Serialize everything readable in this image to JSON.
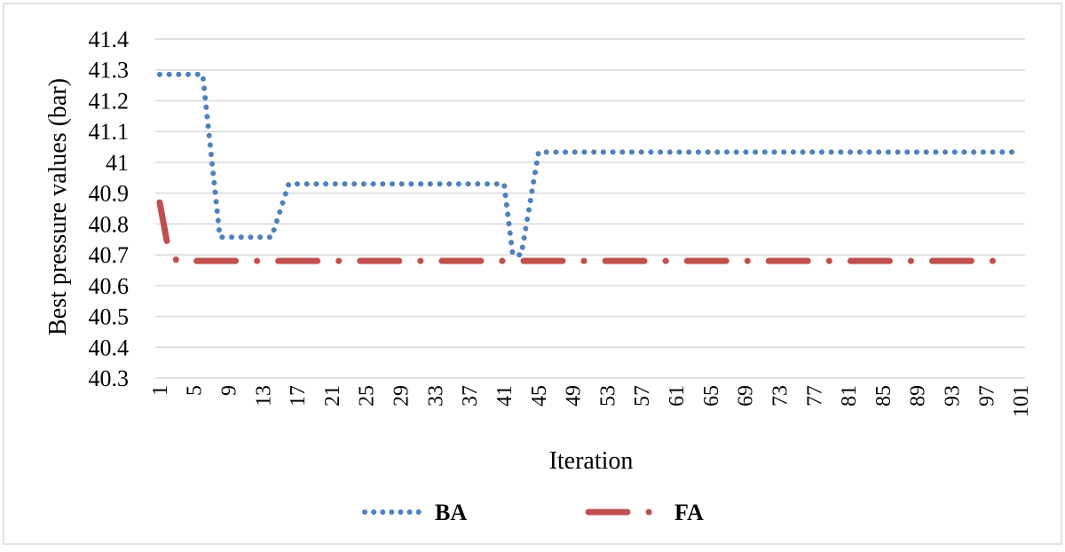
{
  "chart_data": {
    "type": "line",
    "xlabel": "Iteration",
    "ylabel": "Best pressure values (bar)",
    "ylim": [
      40.3,
      41.4
    ],
    "y_ticks": [
      "40.3",
      "40.4",
      "40.5",
      "40.6",
      "40.7",
      "40.8",
      "40.9",
      "41",
      "41.1",
      "41.2",
      "41.3",
      "41.4"
    ],
    "y_tick_values": [
      40.3,
      40.4,
      40.5,
      40.6,
      40.7,
      40.8,
      40.9,
      41.0,
      41.1,
      41.2,
      41.3,
      41.4
    ],
    "x_range": [
      1,
      101
    ],
    "x_ticks": [
      "1",
      "5",
      "9",
      "13",
      "17",
      "21",
      "25",
      "29",
      "33",
      "37",
      "41",
      "45",
      "49",
      "53",
      "57",
      "61",
      "65",
      "69",
      "73",
      "77",
      "81",
      "85",
      "89",
      "93",
      "97",
      "101"
    ],
    "x_tick_values": [
      1,
      5,
      9,
      13,
      17,
      21,
      25,
      29,
      33,
      37,
      41,
      45,
      49,
      53,
      57,
      61,
      65,
      69,
      73,
      77,
      81,
      85,
      89,
      93,
      97,
      101
    ],
    "grid": "horizontal",
    "legend": "bottom",
    "series": [
      {
        "name": "BA",
        "color": "#4f81bd",
        "style": "dotted",
        "points": [
          [
            1,
            41.285
          ],
          [
            6,
            41.285
          ],
          [
            8,
            40.757
          ],
          [
            14,
            40.757
          ],
          [
            16,
            40.93
          ],
          [
            41,
            40.93
          ],
          [
            42,
            40.7
          ],
          [
            43,
            40.7
          ],
          [
            45,
            41.033
          ],
          [
            100,
            41.033
          ]
        ]
      },
      {
        "name": "FA",
        "color": "#c0504d",
        "style": "dash-dot",
        "points": [
          [
            1,
            40.87
          ],
          [
            2,
            40.72
          ],
          [
            3,
            40.68
          ],
          [
            100,
            40.68
          ]
        ]
      }
    ]
  }
}
